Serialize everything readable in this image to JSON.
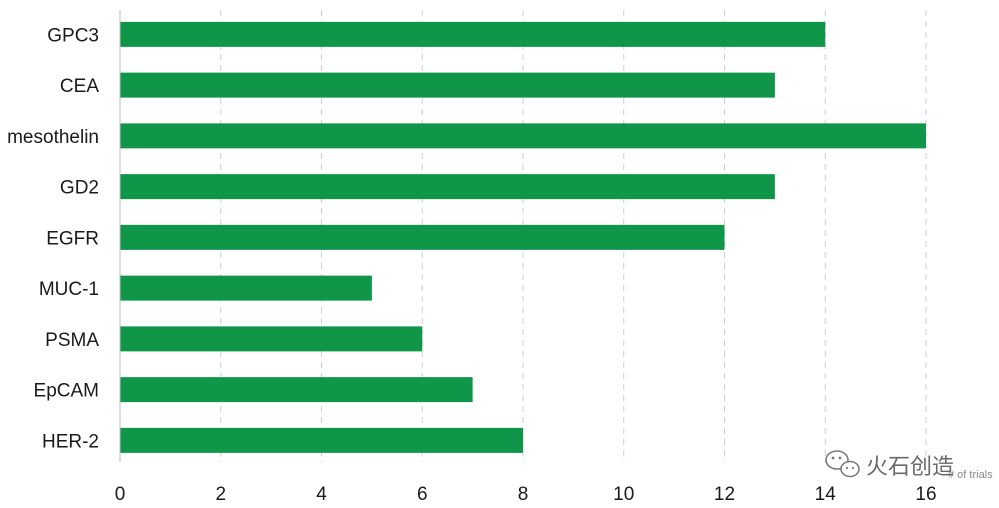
{
  "chart_data": {
    "type": "bar",
    "orientation": "horizontal",
    "title": "",
    "xlabel": "",
    "ylabel": "",
    "categories": [
      "GPC3",
      "CEA",
      "mesothelin",
      "GD2",
      "EGFR",
      "MUC-1",
      "PSMA",
      "EpCAM",
      "HER-2"
    ],
    "values": [
      14,
      13,
      16,
      13,
      12,
      5,
      6,
      7,
      8
    ],
    "xlim": [
      0,
      16
    ],
    "xticks": [
      "0",
      "2",
      "4",
      "6",
      "8",
      "10",
      "12",
      "14",
      "16"
    ],
    "grid": "vertical-dashed",
    "bar_color": "#0f9648"
  },
  "watermark": {
    "logo": "wechat-icon",
    "text": "火石创造",
    "overlay_text": "# of trials"
  }
}
